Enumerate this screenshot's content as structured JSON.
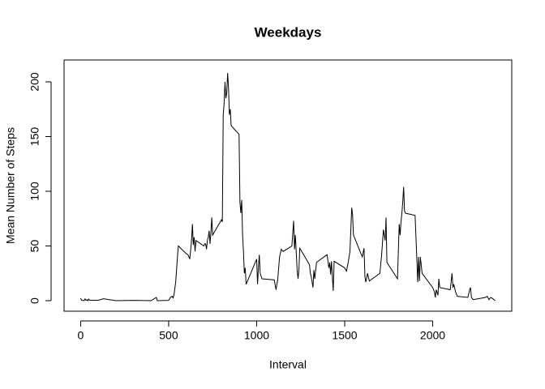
{
  "chart_data": {
    "type": "line",
    "title": "Weekdays",
    "x_label": "Interval",
    "y_label": "Mean Number of Steps",
    "x": [
      0,
      5,
      10,
      15,
      20,
      25,
      30,
      35,
      40,
      45,
      50,
      100,
      130,
      200,
      300,
      400,
      430,
      435,
      500,
      510,
      520,
      525,
      530,
      540,
      550,
      555,
      600,
      610,
      620,
      630,
      635,
      640,
      645,
      650,
      655,
      700,
      705,
      710,
      715,
      720,
      725,
      730,
      735,
      740,
      745,
      750,
      800,
      805,
      810,
      815,
      820,
      825,
      830,
      835,
      840,
      845,
      850,
      855,
      900,
      905,
      910,
      915,
      920,
      925,
      930,
      935,
      940,
      1000,
      1005,
      1010,
      1015,
      1020,
      1030,
      1100,
      1110,
      1120,
      1130,
      1140,
      1150,
      1200,
      1210,
      1215,
      1220,
      1230,
      1235,
      1240,
      1245,
      1300,
      1305,
      1310,
      1320,
      1325,
      1330,
      1340,
      1400,
      1410,
      1415,
      1420,
      1425,
      1430,
      1435,
      1440,
      1500,
      1510,
      1520,
      1530,
      1540,
      1545,
      1550,
      1600,
      1610,
      1615,
      1620,
      1630,
      1640,
      1700,
      1710,
      1720,
      1730,
      1735,
      1740,
      1800,
      1810,
      1815,
      1820,
      1825,
      1830,
      1835,
      1840,
      1845,
      1900,
      1910,
      1915,
      1920,
      1925,
      1930,
      1940,
      2000,
      2010,
      2015,
      2020,
      2030,
      2035,
      2040,
      2100,
      2110,
      2115,
      2120,
      2130,
      2140,
      2200,
      2210,
      2215,
      2220,
      2230,
      2300,
      2310,
      2320,
      2330,
      2340,
      2355
    ],
    "values": [
      2.3,
      0.5,
      0.2,
      0.2,
      0.1,
      1.7,
      0.4,
      0.9,
      0,
      1.5,
      0.4,
      0.4,
      1.8,
      0,
      0.3,
      0,
      3,
      0,
      0.3,
      3,
      4,
      2.5,
      5,
      17,
      40,
      50,
      43,
      42,
      38,
      55,
      70,
      51,
      58,
      45,
      55,
      50,
      52,
      52,
      47,
      55,
      58,
      64,
      52,
      62,
      76,
      60,
      74,
      72,
      170,
      180,
      200,
      185,
      190,
      208,
      195,
      170,
      175,
      160,
      152,
      90,
      80,
      92,
      60,
      45,
      25,
      30,
      15,
      38,
      15,
      30,
      42,
      25,
      20,
      19,
      10,
      20,
      40,
      47,
      45,
      50,
      73,
      47,
      60,
      28,
      20,
      28,
      48,
      33,
      25,
      22,
      12,
      28,
      20,
      35,
      42,
      30,
      35,
      24,
      36,
      22,
      9,
      36,
      30,
      27,
      35,
      45,
      85,
      78,
      60,
      40,
      48,
      22,
      17,
      25,
      18,
      25,
      42,
      65,
      55,
      76,
      35,
      20,
      70,
      60,
      72,
      80,
      90,
      104,
      82,
      80,
      78,
      38,
      17,
      40,
      18,
      40,
      25,
      12,
      8,
      3,
      10,
      5,
      20,
      12,
      10,
      25,
      12,
      15,
      8,
      4,
      3,
      10,
      12,
      3,
      1,
      3,
      4,
      1,
      3,
      2,
      0
    ],
    "color": "#000000",
    "xlim": [
      -94.2,
      2449.2
    ],
    "xticks": [
      0,
      500,
      1000,
      1500,
      2000
    ],
    "ylim": [
      -9.6,
      220
    ],
    "yticks": [
      0,
      50,
      100,
      150,
      200
    ]
  }
}
